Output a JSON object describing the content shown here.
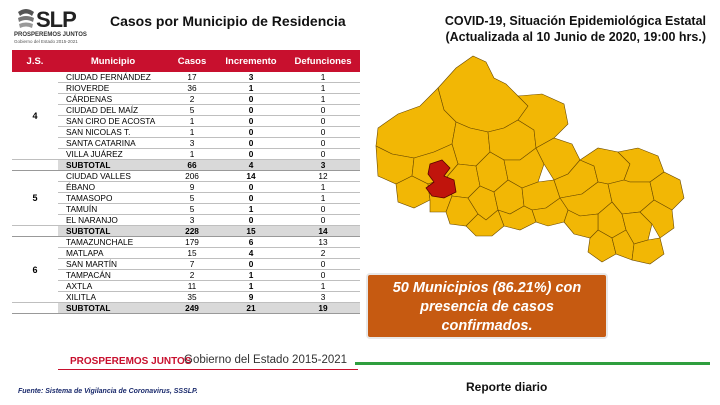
{
  "logo": {
    "text": "SLP",
    "tagline": "PROSPEREMOS JUNTOS",
    "subline": "Gobierno del Estado 2015-2021"
  },
  "table_title": "Casos por Municipio  de Residencia",
  "main_title": {
    "line1": "COVID-19, Situación Epidemiológica Estatal",
    "line2": "(Actualizada al 10 Junio de 2020, 19:00 hrs.)"
  },
  "table": {
    "headers": [
      "J.S.",
      "Municipio",
      "Casos",
      "Incremento",
      "Defunciones"
    ],
    "groups": [
      {
        "js": "4",
        "rows": [
          {
            "municipio": "CIUDAD FERNÁNDEZ",
            "casos": "17",
            "incremento": "3",
            "defunciones": "1"
          },
          {
            "municipio": "RIOVERDE",
            "casos": "36",
            "incremento": "1",
            "defunciones": "1"
          },
          {
            "municipio": "CÁRDENAS",
            "casos": "2",
            "incremento": "0",
            "defunciones": "1"
          },
          {
            "municipio": "CIUDAD DEL MAÍZ",
            "casos": "5",
            "incremento": "0",
            "defunciones": "0"
          },
          {
            "municipio": "SAN CIRO DE ACOSTA",
            "casos": "1",
            "incremento": "0",
            "defunciones": "0"
          },
          {
            "municipio": "SAN NICOLAS T.",
            "casos": "1",
            "incremento": "0",
            "defunciones": "0"
          },
          {
            "municipio": "SANTA CATARINA",
            "casos": "3",
            "incremento": "0",
            "defunciones": "0"
          },
          {
            "municipio": "VILLA JUÁREZ",
            "casos": "1",
            "incremento": "0",
            "defunciones": "0"
          }
        ],
        "subtotal": {
          "label": "SUBTOTAL",
          "casos": "66",
          "incremento": "4",
          "defunciones": "3"
        }
      },
      {
        "js": "5",
        "rows": [
          {
            "municipio": "CIUDAD VALLES",
            "casos": "206",
            "incremento": "14",
            "defunciones": "12"
          },
          {
            "municipio": "ÉBANO",
            "casos": "9",
            "incremento": "0",
            "defunciones": "1"
          },
          {
            "municipio": "TAMASOPO",
            "casos": "5",
            "incremento": "0",
            "defunciones": "1"
          },
          {
            "municipio": "TAMUÍN",
            "casos": "5",
            "incremento": "1",
            "defunciones": "0"
          },
          {
            "municipio": "EL NARANJO",
            "casos": "3",
            "incremento": "0",
            "defunciones": "0"
          }
        ],
        "subtotal": {
          "label": "SUBTOTAL",
          "casos": "228",
          "incremento": "15",
          "defunciones": "14"
        }
      },
      {
        "js": "6",
        "rows": [
          {
            "municipio": "TAMAZUNCHALE",
            "casos": "179",
            "incremento": "6",
            "defunciones": "13"
          },
          {
            "municipio": "MATLAPA",
            "casos": "15",
            "incremento": "4",
            "defunciones": "2"
          },
          {
            "municipio": "SAN MARTÍN",
            "casos": "7",
            "incremento": "0",
            "defunciones": "0"
          },
          {
            "municipio": "TAMPACÁN",
            "casos": "2",
            "incremento": "1",
            "defunciones": "0"
          },
          {
            "municipio": "AXTLA",
            "casos": "11",
            "incremento": "1",
            "defunciones": "1"
          },
          {
            "municipio": "XILITLA",
            "casos": "35",
            "incremento": "9",
            "defunciones": "3"
          }
        ],
        "subtotal": {
          "label": "SUBTOTAL",
          "casos": "249",
          "incremento": "21",
          "defunciones": "19"
        }
      }
    ]
  },
  "callout": {
    "line1": "50 Municipios (86.21%) con",
    "line2": "presencia de casos",
    "line3": "confirmados."
  },
  "footer": {
    "brand": "PROSPEREMOS JUNTOS",
    "government": "Gobierno del Estado 2015-2021"
  },
  "source": "Fuente: Sistema de Vigilancia de Coronavirus, SSSLP.",
  "daily_report": "Reporte diario",
  "colors": {
    "header_red": "#c8102e",
    "callout_orange": "#c65a11",
    "map_yellow": "#f2b705",
    "map_highlight": "#c0140c",
    "footer_green": "#2e9e3e"
  }
}
